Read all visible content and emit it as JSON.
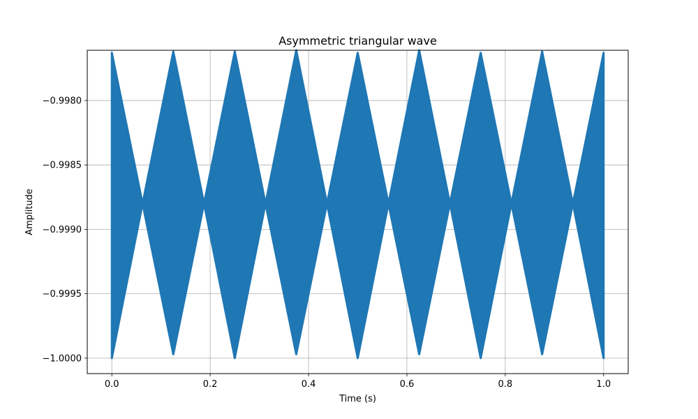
{
  "chart_data": {
    "type": "area",
    "title": "Asymmetric triangular wave",
    "xlabel": "Time (s)",
    "ylabel": "Amplitude",
    "xlim": [
      -0.05,
      1.05
    ],
    "ylim": [
      -1.00012,
      -0.99761
    ],
    "xticks": [
      0.0,
      0.2,
      0.4,
      0.6,
      0.8,
      1.0
    ],
    "xtick_labels": [
      "0.0",
      "0.2",
      "0.4",
      "0.6",
      "0.8",
      "1.0"
    ],
    "yticks": [
      -1.0,
      -0.9995,
      -0.999,
      -0.9985,
      -0.998
    ],
    "ytick_labels": [
      "−1.0000",
      "−0.9995",
      "−0.9990",
      "−0.9985",
      "−0.9980"
    ],
    "grid": true,
    "series": [
      {
        "color": "#1f77b4",
        "envelope": {
          "x": [
            0.0,
            0.0625,
            0.125,
            0.1875,
            0.25,
            0.3125,
            0.375,
            0.4375,
            0.5,
            0.5625,
            0.625,
            0.6875,
            0.75,
            0.8125,
            0.875,
            0.9375,
            1.0
          ],
          "upper": [
            -0.99763,
            -0.9988,
            -0.99762,
            -0.9988,
            -0.99762,
            -0.9988,
            -0.99761,
            -0.9988,
            -0.99763,
            -0.9988,
            -0.99761,
            -0.9988,
            -0.99763,
            -0.9988,
            -0.99762,
            -0.9988,
            -0.99763
          ],
          "lower": [
            -1.0,
            -0.9988,
            -0.99997,
            -0.9988,
            -1.0,
            -0.9988,
            -0.99997,
            -0.9988,
            -1.0,
            -0.9988,
            -0.99997,
            -0.9988,
            -1.0,
            -0.9988,
            -0.99997,
            -0.9988,
            -1.0
          ]
        }
      }
    ]
  }
}
